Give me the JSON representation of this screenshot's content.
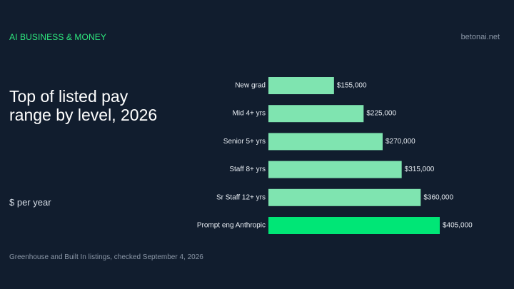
{
  "header": {
    "kicker": "AI BUSINESS & MONEY",
    "site": "betonai.net"
  },
  "chart_data": {
    "type": "bar",
    "orientation": "horizontal",
    "title": "Top of listed pay range by level, 2026",
    "unit_label": "$ per year",
    "categories": [
      "New grad",
      "Mid 4+ yrs",
      "Senior 5+ yrs",
      "Staff 8+ yrs",
      "Sr Staff 12+ yrs",
      "Prompt eng Anthropic"
    ],
    "values": [
      155000,
      225000,
      270000,
      315000,
      360000,
      405000
    ],
    "value_labels": [
      "$155,000",
      "$225,000",
      "$270,000",
      "$315,000",
      "$360,000",
      "$405,000"
    ],
    "bar_color": "#7fe4b0",
    "highlight_color": "#00e676",
    "highlight_index": 5,
    "xlim": [
      0,
      405000
    ],
    "grid": false
  },
  "footer": {
    "source": "Greenhouse and Built In listings, checked September 4, 2026"
  }
}
